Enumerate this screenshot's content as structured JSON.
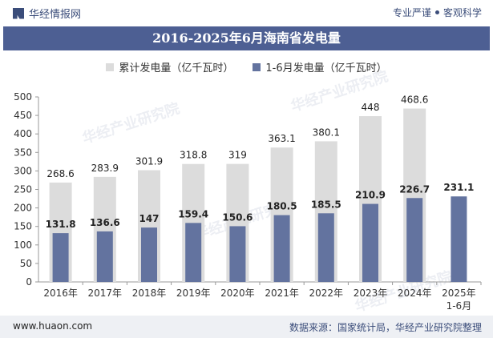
{
  "header": {
    "brand": "华经情报网",
    "tag_pro": "专业严谨",
    "tag_objective": "客观科学"
  },
  "watermark": "华经产业研究院",
  "colors": {
    "accent": "#4d5f93",
    "cumulative_bar": "#dcdcdc",
    "monthly_bar": "#63739f"
  },
  "footer": {
    "site": "www.huaon.com",
    "source": "数据来源：国家统计局，华经产业研究院整理"
  },
  "chart_data": {
    "type": "bar",
    "title": "2016-2025年6月海南省发电量",
    "categories": [
      "2016年",
      "2017年",
      "2018年",
      "2019年",
      "2020年",
      "2021年",
      "2022年",
      "2023年",
      "2024年",
      "2025年\n1-6月"
    ],
    "series": [
      {
        "name": "累计发电量（亿千瓦时）",
        "values": [
          268.6,
          283.9,
          301.9,
          318.8,
          319,
          363.1,
          380.1,
          448,
          468.6,
          null
        ]
      },
      {
        "name": "1-6月发电量（亿千瓦时）",
        "values": [
          131.8,
          136.6,
          147,
          159.4,
          150.6,
          180.5,
          185.5,
          210.9,
          226.7,
          231.1
        ]
      }
    ],
    "ylim": [
      0,
      500
    ],
    "yticks": [
      0,
      50,
      100,
      150,
      200,
      250,
      300,
      350,
      400,
      450,
      500
    ],
    "grid": false,
    "legend": "top-center"
  }
}
